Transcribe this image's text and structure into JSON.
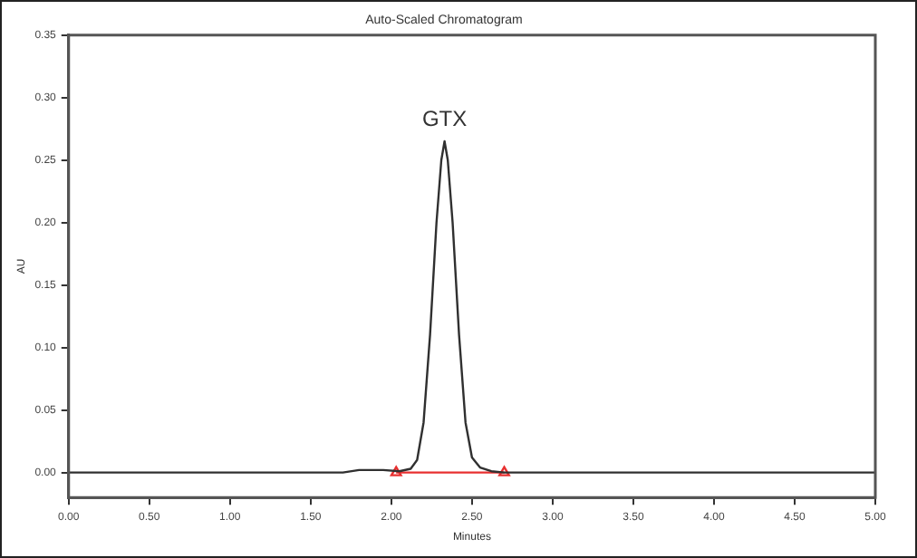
{
  "chart_data": {
    "type": "line",
    "title": "Auto-Scaled Chromatogram",
    "xlabel": "Minutes",
    "ylabel": "AU",
    "xlim": [
      0,
      5
    ],
    "xticks": [
      {
        "value": 0,
        "label": "0.00"
      },
      {
        "value": 0.5,
        "label": "0.50"
      },
      {
        "value": 1,
        "label": "1.00"
      },
      {
        "value": 1.5,
        "label": "1.50"
      },
      {
        "value": 2,
        "label": "2.00"
      },
      {
        "value": 2.5,
        "label": "2.50"
      },
      {
        "value": 3,
        "label": "3.00"
      },
      {
        "value": 3.5,
        "label": "3.50"
      },
      {
        "value": 4,
        "label": "4.00"
      },
      {
        "value": 4.5,
        "label": "4.50"
      },
      {
        "value": 5,
        "label": "5.00"
      }
    ],
    "ylim": [
      -0.02,
      0.35
    ],
    "yticks": [
      {
        "value": 0,
        "label": "0.00"
      },
      {
        "value": 0.05,
        "label": "0.05"
      },
      {
        "value": 0.1,
        "label": "0.10"
      },
      {
        "value": 0.15,
        "label": "0.15"
      },
      {
        "value": 0.2,
        "label": "0.20"
      },
      {
        "value": 0.25,
        "label": "0.25"
      },
      {
        "value": 0.3,
        "label": "0.30"
      },
      {
        "value": 0.35,
        "label": "0.35"
      }
    ],
    "grid": false,
    "legend": false,
    "line_style": "solid",
    "series": [
      {
        "color": "#303030",
        "marker": "none",
        "x": [
          0,
          1.7,
          1.8,
          1.95,
          2.05,
          2.12,
          2.16,
          2.2,
          2.24,
          2.28,
          2.31,
          2.33,
          2.35,
          2.38,
          2.42,
          2.46,
          2.5,
          2.55,
          2.62,
          2.7,
          5
        ],
        "values": [
          0,
          0,
          0.002,
          0.002,
          0.001,
          0.003,
          0.01,
          0.04,
          0.11,
          0.2,
          0.25,
          0.265,
          0.25,
          0.2,
          0.11,
          0.04,
          0.012,
          0.004,
          0.001,
          0,
          0
        ]
      },
      {
        "color": "#e83030",
        "marker": "triangle",
        "x": [
          2.03,
          2.7
        ],
        "values": [
          0,
          0
        ]
      }
    ],
    "annotations": [
      {
        "text": "GTX",
        "x": 2.33,
        "y": 0.265
      }
    ]
  }
}
